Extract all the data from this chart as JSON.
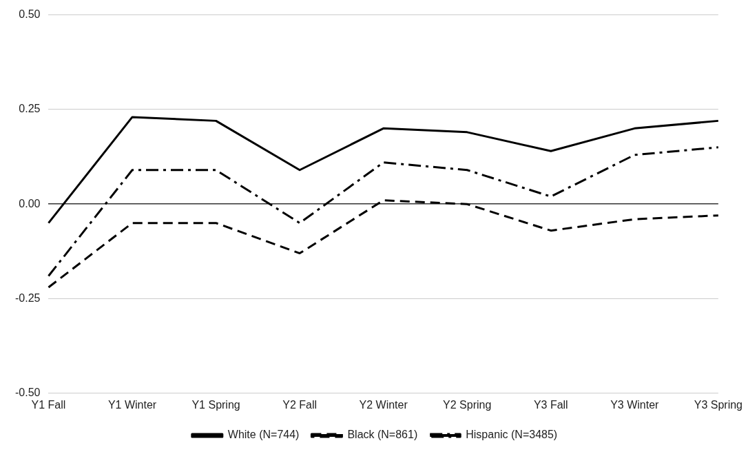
{
  "chart_data": {
    "type": "line",
    "categories": [
      "Y1 Fall",
      "Y1 Winter",
      "Y1 Spring",
      "Y2 Fall",
      "Y2 Winter",
      "Y2 Spring",
      "Y3 Fall",
      "Y3 Winter",
      "Y3 Spring"
    ],
    "series": [
      {
        "name": "White (N=744)",
        "color": "#000000",
        "line_style": "solid",
        "values": [
          -0.05,
          0.23,
          0.22,
          0.09,
          0.2,
          0.19,
          0.14,
          0.2,
          0.22
        ]
      },
      {
        "name": "Black (N=861)",
        "color": "#000000",
        "line_style": "dashed",
        "values": [
          -0.22,
          -0.05,
          -0.05,
          -0.13,
          0.01,
          0.0,
          -0.07,
          -0.04,
          -0.03
        ]
      },
      {
        "name": "Hispanic (N=3485)",
        "color": "#000000",
        "line_style": "dashdot",
        "values": [
          -0.19,
          0.09,
          0.09,
          -0.05,
          0.11,
          0.09,
          0.02,
          0.13,
          0.15
        ]
      }
    ],
    "ylim": [
      -0.5,
      0.5
    ],
    "yticks": [
      {
        "value": -0.5,
        "label": "-0.50"
      },
      {
        "value": -0.25,
        "label": "-0.25"
      },
      {
        "value": 0,
        "label": "0.00"
      },
      {
        "value": 0.25,
        "label": "0.25"
      },
      {
        "value": 0.5,
        "label": "0.50"
      }
    ],
    "grid": "y",
    "legend": "bottom",
    "marker": "none"
  }
}
